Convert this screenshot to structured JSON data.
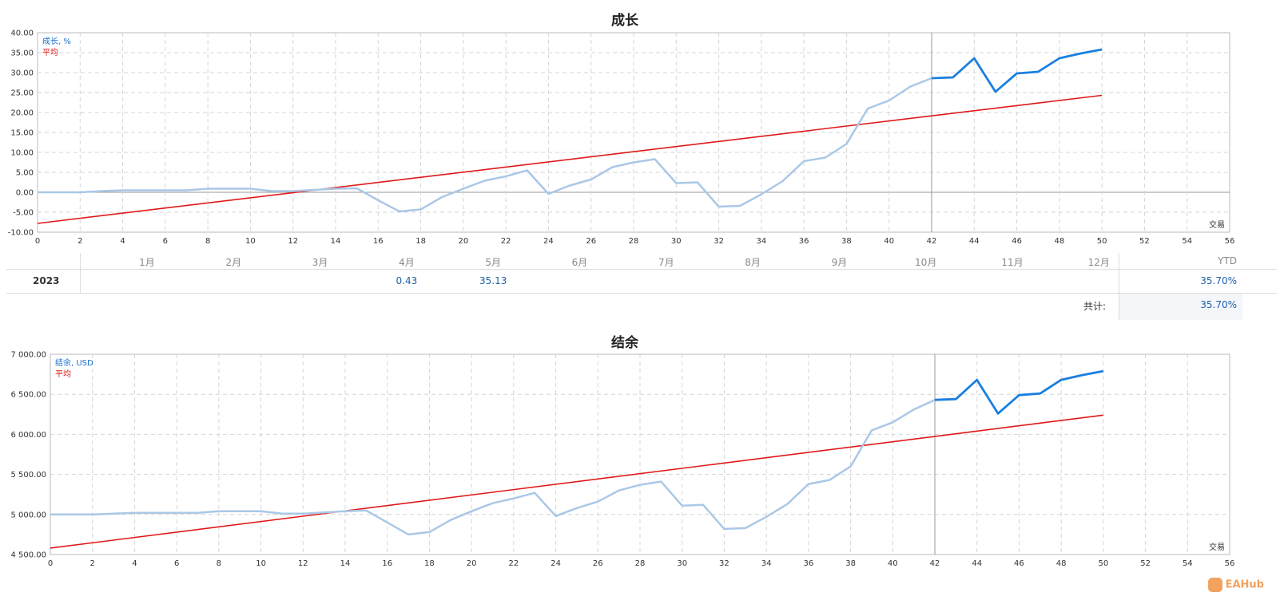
{
  "chart_data": [
    {
      "type": "line",
      "title": "成长",
      "x": [
        0,
        1,
        2,
        3,
        4,
        5,
        6,
        7,
        8,
        9,
        10,
        11,
        12,
        13,
        14,
        15,
        16,
        17,
        18,
        19,
        20,
        21,
        22,
        23,
        24,
        25,
        26,
        27,
        28,
        29,
        30,
        31,
        32,
        33,
        34,
        35,
        36,
        37,
        38,
        39,
        40,
        41,
        42,
        43,
        44,
        45,
        46,
        47,
        48,
        49,
        50
      ],
      "xlim": [
        0,
        56
      ],
      "xticks": [
        0,
        2,
        4,
        6,
        8,
        10,
        12,
        14,
        16,
        18,
        20,
        22,
        24,
        26,
        28,
        30,
        32,
        34,
        36,
        38,
        40,
        42,
        44,
        46,
        48,
        50,
        52,
        54,
        56
      ],
      "ylim": [
        -10,
        40
      ],
      "yticks": [
        "-10.00",
        "-5.00",
        "0.00",
        "5.00",
        "10.00",
        "15.00",
        "20.00",
        "25.00",
        "30.00",
        "35.00",
        "40.00"
      ],
      "xlabel": "交易",
      "divider_x": 42,
      "series": [
        {
          "name": "成长, %",
          "color": "#aac8e6",
          "highlight_color": "#1a7fe0",
          "values": [
            0,
            0,
            0,
            0.3,
            0.5,
            0.5,
            0.5,
            0.5,
            0.9,
            0.9,
            0.9,
            0.3,
            0.3,
            0.6,
            0.9,
            1.0,
            -2.0,
            -4.8,
            -4.3,
            -1.2,
            0.9,
            2.9,
            4.0,
            5.5,
            -0.4,
            1.7,
            3.2,
            6.3,
            7.5,
            8.3,
            2.3,
            2.5,
            -3.6,
            -3.4,
            -0.5,
            2.8,
            7.8,
            8.7,
            12.1,
            21.0,
            23.0,
            26.5,
            28.6,
            28.8,
            33.6,
            25.2,
            29.8,
            30.2,
            33.6,
            34.8,
            35.8
          ]
        },
        {
          "name": "平均",
          "color": "#e01818",
          "from": [
            0,
            -7.8
          ],
          "to": [
            50,
            24.3
          ]
        }
      ]
    },
    {
      "type": "line",
      "title": "结余",
      "x": [
        0,
        1,
        2,
        3,
        4,
        5,
        6,
        7,
        8,
        9,
        10,
        11,
        12,
        13,
        14,
        15,
        16,
        17,
        18,
        19,
        20,
        21,
        22,
        23,
        24,
        25,
        26,
        27,
        28,
        29,
        30,
        31,
        32,
        33,
        34,
        35,
        36,
        37,
        38,
        39,
        40,
        41,
        42,
        43,
        44,
        45,
        46,
        47,
        48,
        49,
        50
      ],
      "xlim": [
        0,
        56
      ],
      "xticks": [
        0,
        2,
        4,
        6,
        8,
        10,
        12,
        14,
        16,
        18,
        20,
        22,
        24,
        26,
        28,
        30,
        32,
        34,
        36,
        38,
        40,
        42,
        44,
        46,
        48,
        50,
        52,
        54,
        56
      ],
      "ylim": [
        4500,
        7000
      ],
      "yticks": [
        "4 500.00",
        "5 000.00",
        "5 500.00",
        "6 000.00",
        "6 500.00",
        "7 000.00"
      ],
      "xlabel": "交易",
      "divider_x": 42,
      "series": [
        {
          "name": "结余, USD",
          "color": "#aac8e6",
          "highlight_color": "#1a7fe0",
          "values": [
            5000,
            5000,
            5000,
            5010,
            5020,
            5020,
            5020,
            5020,
            5040,
            5040,
            5040,
            5010,
            5010,
            5025,
            5040,
            5050,
            4900,
            4750,
            4780,
            4930,
            5040,
            5140,
            5200,
            5270,
            4980,
            5080,
            5160,
            5300,
            5370,
            5410,
            5110,
            5120,
            4820,
            4830,
            4970,
            5130,
            5380,
            5430,
            5600,
            6050,
            6150,
            6310,
            6430,
            6440,
            6680,
            6260,
            6490,
            6510,
            6680,
            6740,
            6790
          ]
        },
        {
          "name": "平均",
          "color": "#e01818",
          "from": [
            0,
            4580
          ],
          "to": [
            50,
            6240
          ]
        }
      ]
    }
  ],
  "monthly_table": {
    "months": [
      "1月",
      "2月",
      "3月",
      "4月",
      "5月",
      "6月",
      "7月",
      "8月",
      "9月",
      "10月",
      "11月",
      "12月"
    ],
    "ytd_label": "YTD",
    "year": "2023",
    "values": {
      "4": "0.43",
      "5": "35.13"
    },
    "ytd_value": "35.70%",
    "total_label": "共计:",
    "total_value": "35.70%"
  },
  "watermark": {
    "text": "EAHub"
  }
}
